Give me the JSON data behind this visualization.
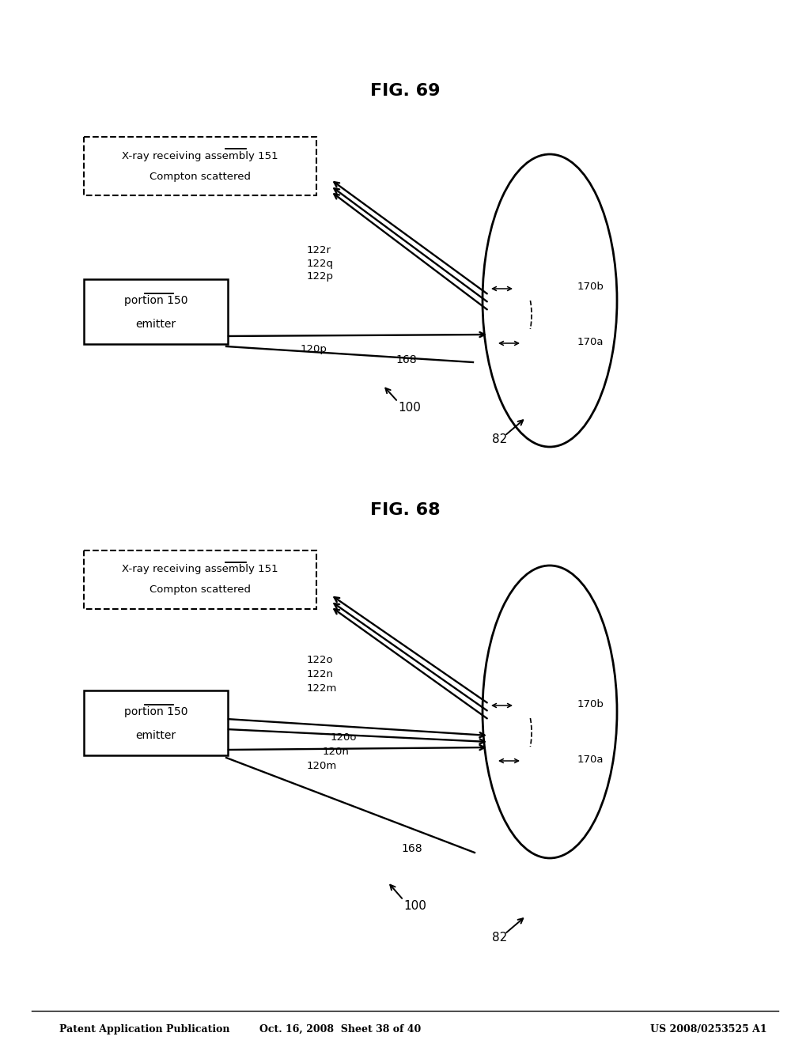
{
  "header_left": "Patent Application Publication",
  "header_mid": "Oct. 16, 2008  Sheet 38 of 40",
  "header_right": "US 2008/0253525 A1",
  "bg_color": "#ffffff",
  "fig68_label": "FIG. 68",
  "fig69_label": "FIG. 69"
}
